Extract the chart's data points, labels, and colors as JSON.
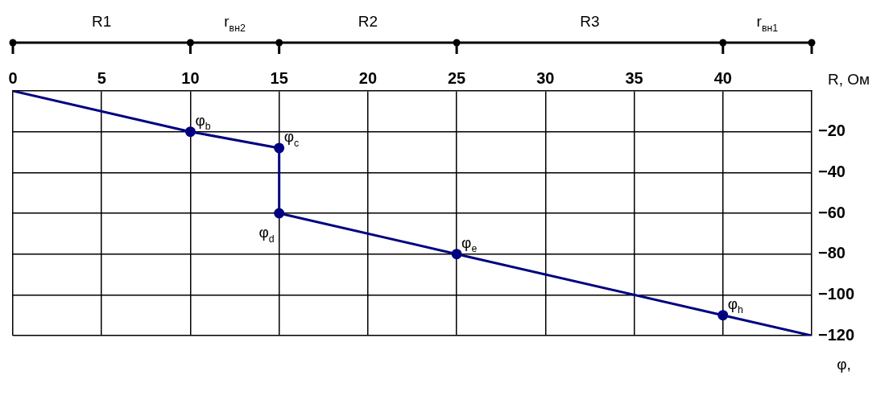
{
  "chart_data": {
    "type": "line",
    "xlabel": "R, Ом",
    "ylabel": "φ,",
    "x": [
      0,
      10,
      15,
      15,
      25,
      40,
      45
    ],
    "series": [
      {
        "color": "#000080",
        "values": [
          0,
          -20,
          -28,
          -60,
          -80,
          -110,
          -120
        ],
        "value_labels": [
          null,
          "φ$_{b}$",
          "φ$_{c}$",
          "φ$_{d}$",
          "φ$_{e}$",
          "φ$_{h}$",
          null
        ]
      }
    ],
    "xlim": [
      0,
      45
    ],
    "xticks": [
      0,
      5,
      10,
      15,
      20,
      25,
      30,
      35,
      40
    ],
    "ylim": [
      -120,
      0
    ],
    "yticks": [
      -20,
      -40,
      -60,
      -80,
      -100,
      -120
    ],
    "annotations": [
      "R1",
      "r$_{вн2}$",
      "R2",
      "R3",
      "r$_{вн1}$"
    ],
    "grid": true,
    "legend": false,
    "marker": "circle",
    "line_style": "solid"
  }
}
